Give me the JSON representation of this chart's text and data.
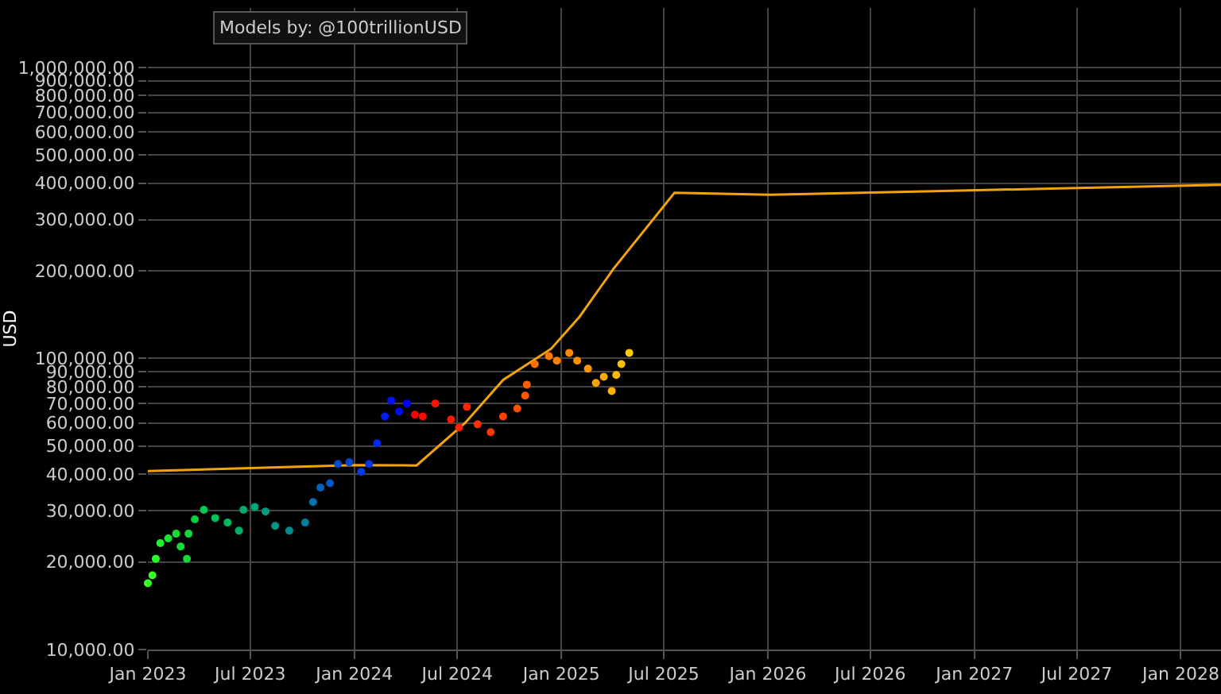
{
  "chart_data": {
    "type": "scatter",
    "ylabel": "USD",
    "log": "y",
    "grid": true,
    "annotations": [
      "Models by: @100trillionUSD"
    ],
    "xlim": [
      "2023-01-01",
      "2028-03-12"
    ],
    "xticks": [
      {
        "value": "2023-01-01",
        "label": "Jan 2023"
      },
      {
        "value": "2023-07-01",
        "label": "Jul 2023"
      },
      {
        "value": "2024-01-01",
        "label": "Jan 2024"
      },
      {
        "value": "2024-07-01",
        "label": "Jul 2024"
      },
      {
        "value": "2025-01-01",
        "label": "Jan 2025"
      },
      {
        "value": "2025-07-01",
        "label": "Jul 2025"
      },
      {
        "value": "2026-01-01",
        "label": "Jan 2026"
      },
      {
        "value": "2026-07-01",
        "label": "Jul 2026"
      },
      {
        "value": "2027-01-01",
        "label": "Jan 2027"
      },
      {
        "value": "2027-07-01",
        "label": "Jul 2027"
      },
      {
        "value": "2028-01-01",
        "label": "Jan 2028"
      }
    ],
    "ylim": [
      10000,
      1600000
    ],
    "yticks": [
      {
        "value": 10000,
        "label": "10,000.00"
      },
      {
        "value": 20000,
        "label": "20,000.00"
      },
      {
        "value": 30000,
        "label": "30,000.00"
      },
      {
        "value": 40000,
        "label": "40,000.00"
      },
      {
        "value": 50000,
        "label": "50,000.00"
      },
      {
        "value": 60000,
        "label": "60,000.00"
      },
      {
        "value": 70000,
        "label": "70,000.00"
      },
      {
        "value": 80000,
        "label": "80,000.00"
      },
      {
        "value": 90000,
        "label": "90,000.00"
      },
      {
        "value": 100000,
        "label": "100,000.00"
      },
      {
        "value": 200000,
        "label": "200,000.00"
      },
      {
        "value": 300000,
        "label": "300,000.00"
      },
      {
        "value": 400000,
        "label": "400,000.00"
      },
      {
        "value": 500000,
        "label": "500,000.00"
      },
      {
        "value": 600000,
        "label": "600,000.00"
      },
      {
        "value": 700000,
        "label": "700,000.00"
      },
      {
        "value": 800000,
        "label": "800,000.00"
      },
      {
        "value": 900000,
        "label": "900,000.00"
      },
      {
        "value": 1000000,
        "label": "1,000,000.00"
      }
    ],
    "series": [
      {
        "type": "line",
        "color": "#f0a30a",
        "x": [
          "2023-01-01",
          "2023-07-01",
          "2024-01-01",
          "2024-04-20",
          "2024-07-15",
          "2024-09-20",
          "2024-12-14",
          "2025-02-02",
          "2025-04-03",
          "2025-07-20",
          "2026-01-04",
          "2026-11-07",
          "2027-06-01",
          "2028-03-12"
        ],
        "values": [
          41000,
          42000,
          43000,
          42900,
          60100,
          84400,
          108000,
          139000,
          203000,
          371000,
          365000,
          376000,
          384000,
          395000
        ]
      },
      {
        "x": [
          "2023-01-01",
          "2023-01-09",
          "2023-01-15",
          "2023-01-23",
          "2023-02-06",
          "2023-02-20",
          "2023-02-28",
          "2023-03-11",
          "2023-03-14",
          "2023-03-25",
          "2023-04-10",
          "2023-04-30",
          "2023-05-22",
          "2023-06-11",
          "2023-06-19",
          "2023-07-09",
          "2023-07-28",
          "2023-08-14",
          "2023-09-08",
          "2023-10-06",
          "2023-10-20",
          "2023-11-02",
          "2023-11-19",
          "2023-12-03",
          "2023-12-23",
          "2024-01-13",
          "2024-01-27",
          "2024-02-10",
          "2024-02-24",
          "2024-03-06",
          "2024-03-20",
          "2024-04-03",
          "2024-04-17",
          "2024-05-01",
          "2024-05-23",
          "2024-06-20",
          "2024-07-04",
          "2024-07-18",
          "2024-08-06",
          "2024-08-29",
          "2024-09-20",
          "2024-10-15",
          "2024-10-29",
          "2024-11-01",
          "2024-11-15",
          "2024-12-10",
          "2024-12-24",
          "2025-01-15",
          "2025-01-29",
          "2025-02-17",
          "2025-03-03",
          "2025-03-17",
          "2025-03-31",
          "2025-04-08",
          "2025-04-17",
          "2025-05-01"
        ],
        "values": [
          16900,
          18000,
          20500,
          23200,
          24100,
          25000,
          22600,
          20500,
          25000,
          28000,
          30200,
          28300,
          27300,
          25600,
          30200,
          30900,
          29800,
          26600,
          25600,
          27300,
          32100,
          36000,
          37300,
          43400,
          44000,
          40800,
          43400,
          51100,
          63200,
          71700,
          65700,
          70000,
          64100,
          63200,
          70000,
          61700,
          57900,
          68200,
          59400,
          55800,
          63200,
          67300,
          74500,
          81300,
          95700,
          101900,
          98200,
          104500,
          98200,
          92200,
          82400,
          86500,
          77300,
          87700,
          95700,
          104500
        ],
        "colors": [
          "#33ff22",
          "#33ff22",
          "#22ff22",
          "#22f028",
          "#11e830",
          "#11e030",
          "#11dd33",
          "#11d838",
          "#11d838",
          "#00d040",
          "#00c850",
          "#00c058",
          "#00b860",
          "#00b068",
          "#00aa70",
          "#00a478",
          "#009c80",
          "#009488",
          "#008c90",
          "#007ea0",
          "#0070b0",
          "#0062c0",
          "#0058c8",
          "#004cd0",
          "#0044d8",
          "#003ce0",
          "#0034e8",
          "#0028ee",
          "#001cf4",
          "#0010f8",
          "#0008fc",
          "#0000ff",
          "#ff0000",
          "#ff0800",
          "#ff1000",
          "#ff1800",
          "#ff2000",
          "#ff2800",
          "#ff3000",
          "#ff3800",
          "#ff4000",
          "#ff5000",
          "#ff5800",
          "#ff6000",
          "#ff7000",
          "#ff7800",
          "#ff8000",
          "#ff8800",
          "#ff9000",
          "#ff9800",
          "#ffa000",
          "#ffa800",
          "#ffb000",
          "#ffb800",
          "#ffc000",
          "#ffc800"
        ]
      }
    ]
  }
}
